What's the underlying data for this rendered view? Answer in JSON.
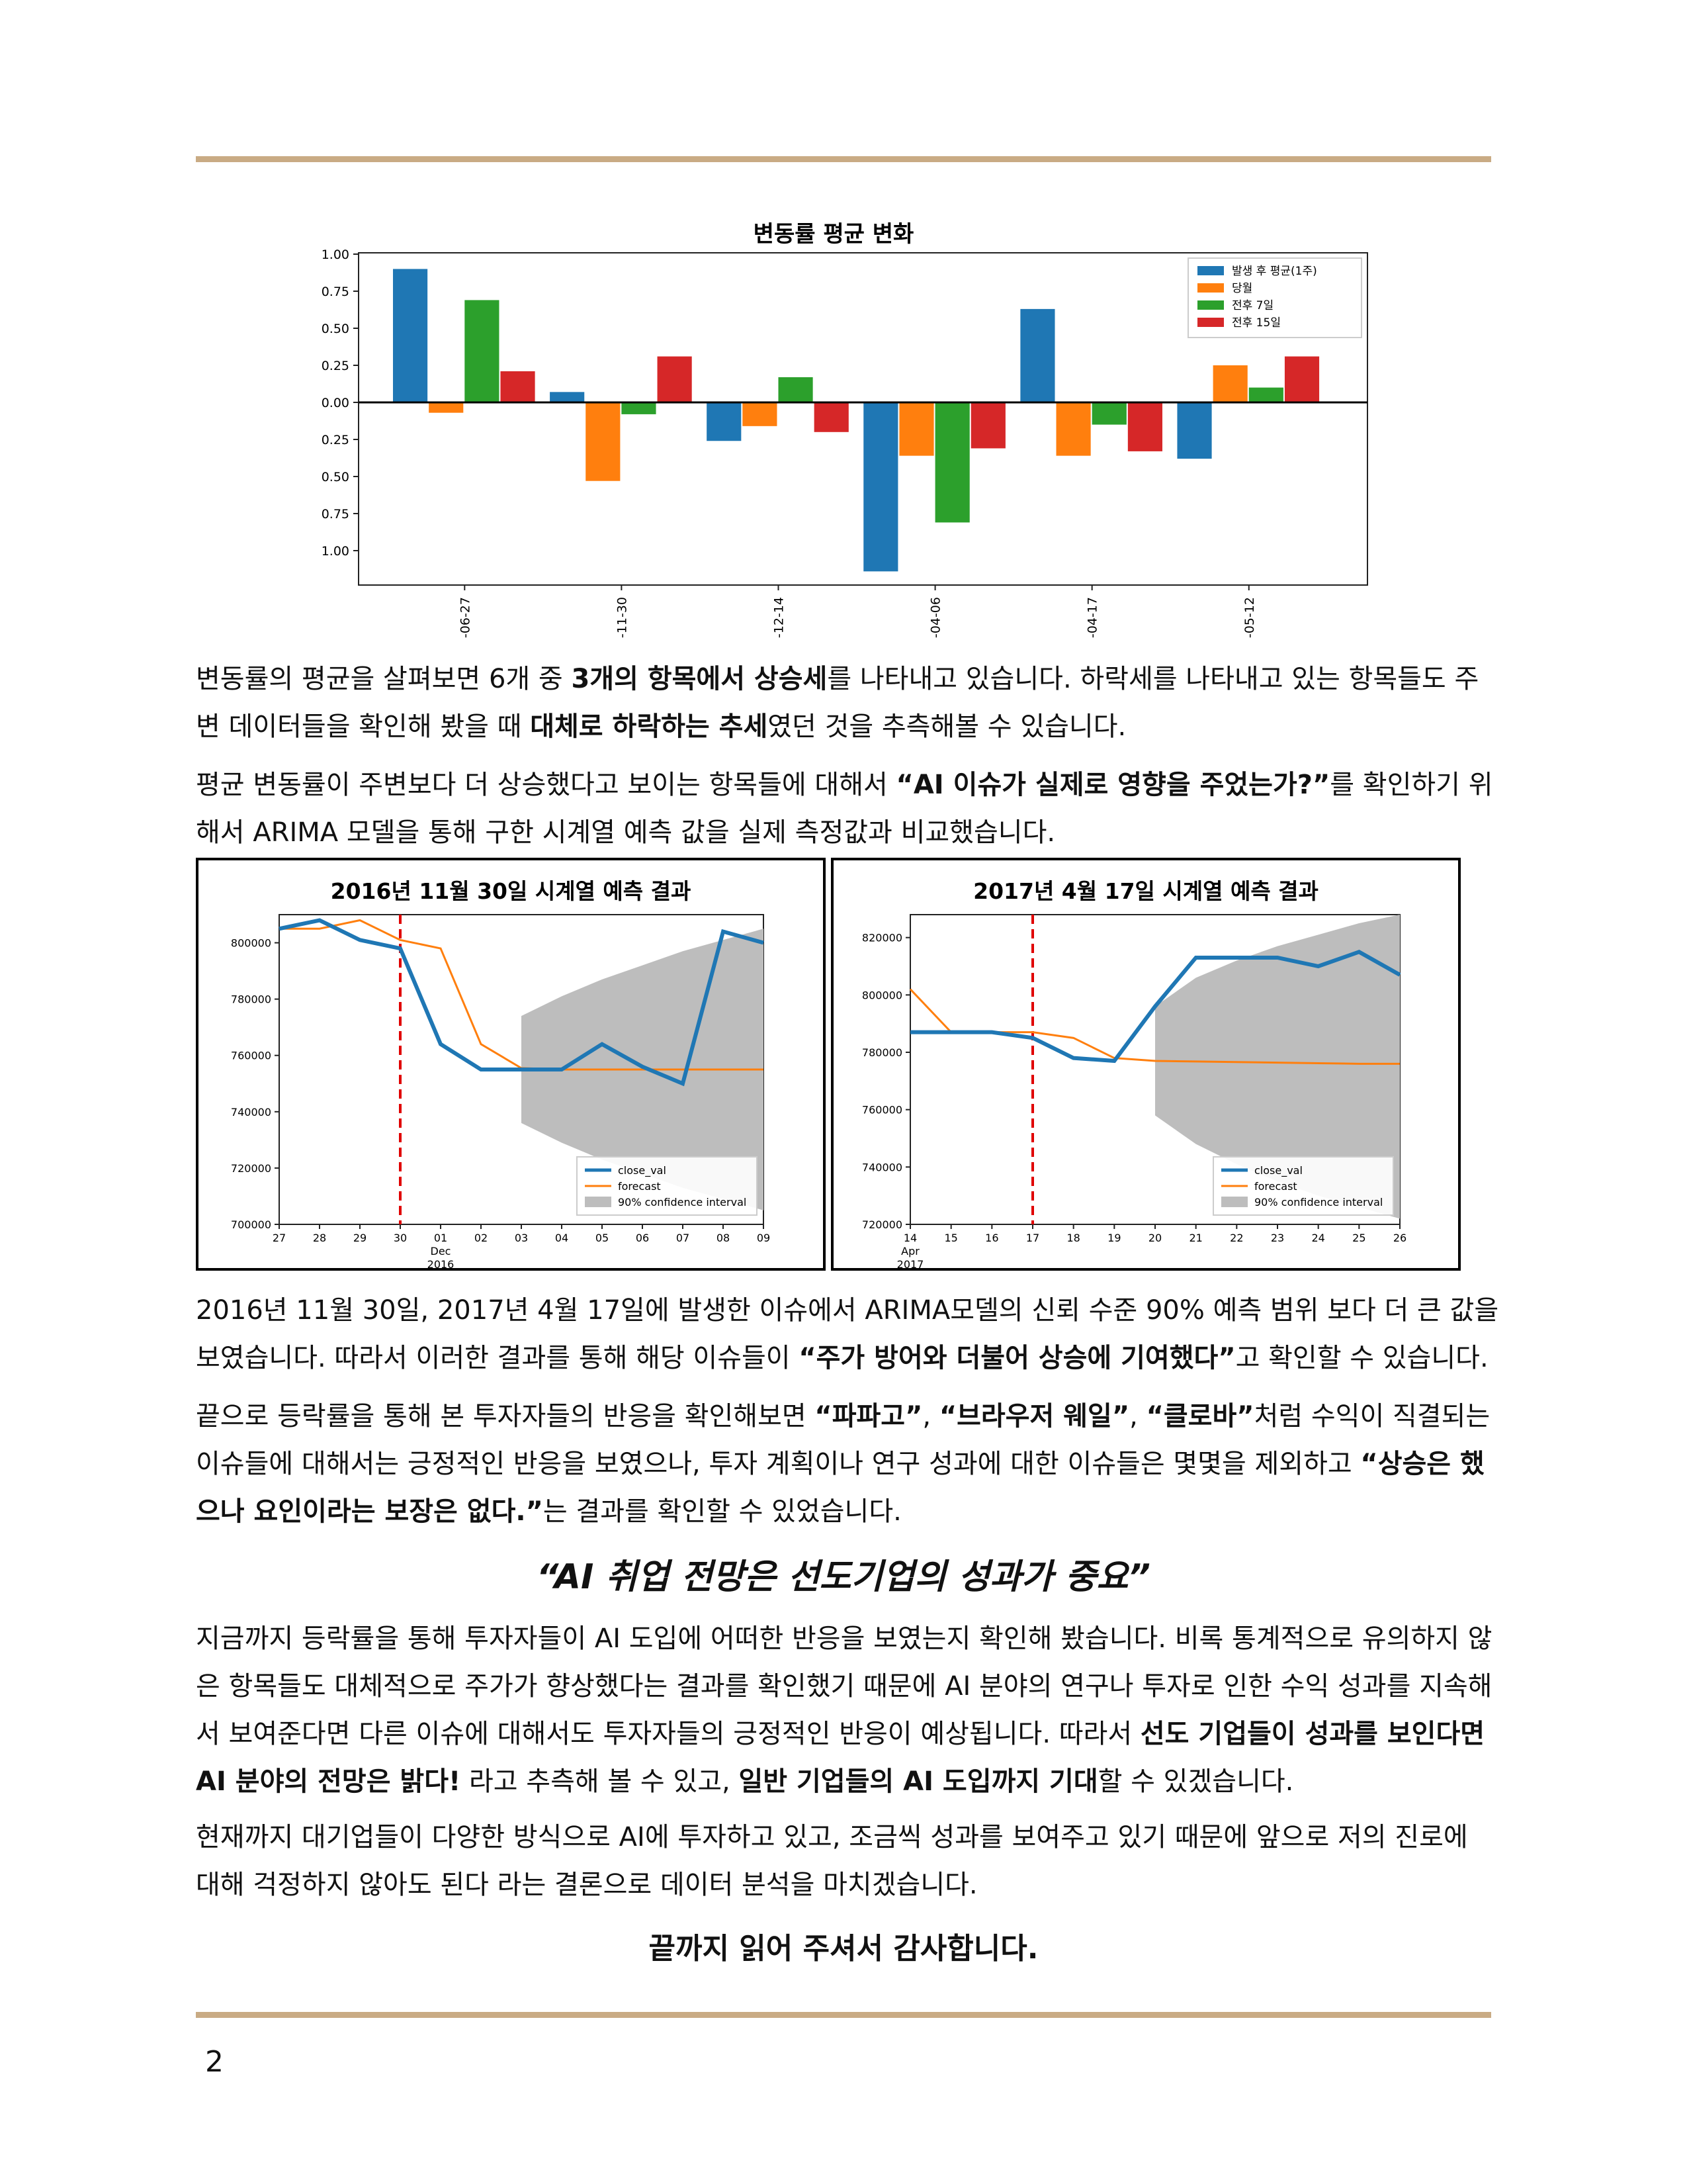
{
  "colors": {
    "accent_rule": "#c9ab84",
    "blue": "#1f77b4",
    "orange": "#ff7f0e",
    "green": "#2ca02c",
    "red": "#d62728",
    "ci_gray": "#bdbdbd",
    "event_red": "#e00000"
  },
  "bar_chart": {
    "title": "변동률 평균 변화",
    "legend": [
      "발생 후 평균(1주)",
      "당월",
      "전후 7일",
      "전후 15일"
    ],
    "y_ticks": [
      "1.00",
      "0.75",
      "0.50",
      "0.25",
      "0.00",
      "0.25",
      "0.50",
      "0.75",
      "1.00"
    ],
    "x_ticks": [
      "-06-27",
      "-11-30",
      "-12-14",
      "-04-06",
      "-04-17",
      "-05-12"
    ]
  },
  "ts_left": {
    "title": "2016년 11월 30일 시계열 예측 결과",
    "y_ticks": [
      "800000",
      "780000",
      "760000",
      "740000",
      "720000",
      "700000"
    ],
    "x_ticks": [
      "27",
      "28",
      "29",
      "30",
      "01",
      "02",
      "03",
      "04",
      "05",
      "06",
      "07",
      "08",
      "09"
    ],
    "x_sub1": "Dec",
    "x_sub2": "2016",
    "legend": [
      "close_val",
      "forecast",
      "90% confidence interval"
    ]
  },
  "ts_right": {
    "title": "2017년 4월 17일 시계열 예측 결과",
    "y_ticks": [
      "820000",
      "800000",
      "780000",
      "760000",
      "740000",
      "720000"
    ],
    "x_ticks": [
      "14",
      "15",
      "16",
      "17",
      "18",
      "19",
      "20",
      "21",
      "22",
      "23",
      "24",
      "25",
      "26"
    ],
    "x_sub1": "Apr",
    "x_sub2": "2017",
    "legend": [
      "close_val",
      "forecast",
      "90% confidence interval"
    ]
  },
  "chart_data": [
    {
      "type": "bar",
      "title": "변동률 평균 변화",
      "categories": [
        "-06-27",
        "-11-30",
        "-12-14",
        "-04-06",
        "-04-17",
        "-05-12"
      ],
      "ylim": [
        -1.15,
        1.0
      ],
      "legend_position": "top-right",
      "series": [
        {
          "name": "발생 후 평균(1주)",
          "values": [
            0.9,
            0.07,
            -0.26,
            -1.14,
            0.63,
            -0.38
          ]
        },
        {
          "name": "당월",
          "values": [
            -0.07,
            -0.53,
            -0.16,
            -0.36,
            -0.36,
            0.25
          ]
        },
        {
          "name": "전후 7일",
          "values": [
            0.69,
            -0.08,
            0.17,
            -0.81,
            -0.15,
            0.1
          ]
        },
        {
          "name": "전후 15일",
          "values": [
            0.21,
            0.31,
            -0.2,
            -0.31,
            -0.33,
            0.31
          ]
        }
      ]
    },
    {
      "type": "line",
      "title": "2016년 11월 30일 시계열 예측 결과",
      "x": [
        "27",
        "28",
        "29",
        "30",
        "01",
        "02",
        "03",
        "04",
        "05",
        "06",
        "07",
        "08",
        "09"
      ],
      "ylim": [
        700000,
        810000
      ],
      "event_x": "30",
      "legend_position": "bottom-right",
      "series": [
        {
          "name": "close_val",
          "values": [
            805000,
            808000,
            801000,
            798000,
            764000,
            755000,
            755000,
            755000,
            764000,
            756000,
            750000,
            804000,
            800000
          ]
        },
        {
          "name": "forecast",
          "values": [
            805000,
            805000,
            808000,
            801000,
            798000,
            764000,
            755500,
            755000,
            755000,
            755000,
            755000,
            755000,
            755000
          ]
        },
        {
          "name": "90% confidence interval",
          "x_from": "03",
          "lower": [
            736000,
            729000,
            723000,
            718000,
            713000,
            709000,
            705000
          ],
          "upper": [
            774000,
            781000,
            787000,
            792000,
            797000,
            801000,
            805000
          ]
        }
      ]
    },
    {
      "type": "line",
      "title": "2017년 4월 17일 시계열 예측 결과",
      "x": [
        "14",
        "15",
        "16",
        "17",
        "18",
        "19",
        "20",
        "21",
        "22",
        "23",
        "24",
        "25",
        "26"
      ],
      "ylim": [
        720000,
        828000
      ],
      "event_x": "17",
      "legend_position": "bottom-right",
      "series": [
        {
          "name": "close_val",
          "values": [
            787000,
            787000,
            787000,
            785000,
            778000,
            777000,
            796000,
            813000,
            813000,
            813000,
            810000,
            815000,
            807000
          ]
        },
        {
          "name": "forecast",
          "values": [
            802000,
            787000,
            787000,
            787000,
            785000,
            778000,
            777000,
            776800,
            776600,
            776400,
            776200,
            776000,
            776000
          ]
        },
        {
          "name": "90% confidence interval",
          "x_from": "20",
          "lower": [
            758000,
            748000,
            741000,
            735000,
            730000,
            726000,
            722000
          ],
          "upper": [
            796000,
            806000,
            812000,
            817000,
            821000,
            825000,
            828000
          ]
        }
      ]
    }
  ],
  "para1": {
    "parts": [
      {
        "t": "변동률의 평균을 살펴보면 6개 중 ",
        "b": false
      },
      {
        "t": "3개의 항목에서 상승세",
        "b": true
      },
      {
        "t": "를 나타내고 있습니다. 하락세를 나타내고 있는 항목들도 주변 데이터들을 확인해 봤을 때 ",
        "b": false
      },
      {
        "t": "대체로 하락하는 추세",
        "b": true
      },
      {
        "t": "였던 것을 추측해볼 수 있습니다.",
        "b": false
      }
    ]
  },
  "para2": {
    "parts": [
      {
        "t": "평균 변동률이 주변보다 더 상승했다고 보이는 항목들에 대해서 ",
        "b": false
      },
      {
        "t": "“AI 이슈가 실제로 영향을 주었는가?”",
        "b": true
      },
      {
        "t": "를 확인하기 위해서 ARIMA 모델을 통해 구한 시계열 예측 값을 실제 측정값과 비교했습니다.",
        "b": false
      }
    ]
  },
  "para3": {
    "parts": [
      {
        "t": "2016년 11월 30일, 2017년 4월 17일에 발생한 이슈에서 ARIMA모델의 신뢰 수준 90% 예측 범위 보다 더 큰 값을 보였습니다. 따라서 이러한 결과를 통해 해당 이슈들이 ",
        "b": false
      },
      {
        "t": "“주가 방어와 더불어 상승에 기여했다”",
        "b": true
      },
      {
        "t": "고 확인할 수 있습니다.",
        "b": false
      }
    ]
  },
  "para4": {
    "parts": [
      {
        "t": "   끝으로 등락률을 통해 본 투자자들의 반응을 확인해보면 ",
        "b": false
      },
      {
        "t": "“파파고”",
        "b": true
      },
      {
        "t": ", ",
        "b": false
      },
      {
        "t": "“브라우저 웨일”",
        "b": true
      },
      {
        "t": ", ",
        "b": false
      },
      {
        "t": "“클로바”",
        "b": true
      },
      {
        "t": "처럼 수익이 직결되는 이슈들에 대해서는 긍정적인 반응을 보였으나, 투자 계획이나 연구 성과에 대한 이슈들은 몇몇을 제외하고 ",
        "b": false
      },
      {
        "t": "“상승은 했으나 요인이라는 보장은 없다.”",
        "b": true
      },
      {
        "t": "는 결과를 확인할 수 있었습니다.",
        "b": false
      }
    ]
  },
  "heading": "“AI 취업 전망은 선도기업의 성과가 중요”",
  "para5": {
    "parts": [
      {
        "t": "   지금까지 등락률을 통해 투자자들이 AI 도입에 어떠한 반응을 보였는지 확인해 봤습니다. 비록 통계적으로 유의하지 않은 항목들도 대체적으로 주가가 향상했다는 결과를 확인했기 때문에 AI 분야의 연구나 투자로 인한 수익 성과를 지속해서 보여준다면 다른 이슈에 대해서도 투자자들의 긍정적인 반응이 예상됩니다. 따라서 ",
        "b": false
      },
      {
        "t": "선도 기업들이 성과를 보인다면 AI 분야의 전망은 밝다!",
        "b": true
      },
      {
        "t": " 라고 추측해 볼 수 있고, ",
        "b": false
      },
      {
        "t": "일반 기업들의 AI 도입까지 기대",
        "b": true
      },
      {
        "t": "할 수 있겠습니다.",
        "b": false
      }
    ]
  },
  "para6": {
    "parts": [
      {
        "t": "   현재까지 대기업들이 다양한 방식으로 AI에 투자하고 있고, 조금씩 성과를 보여주고 있기 때문에 앞으로 저의 진로에 대해 걱정하지 않아도 된다 라는 결론으로 데이터 분석을 마치겠습니다.",
        "b": false
      }
    ]
  },
  "closing": "끝까지 읽어 주셔서 감사합니다.",
  "page_number": "2"
}
